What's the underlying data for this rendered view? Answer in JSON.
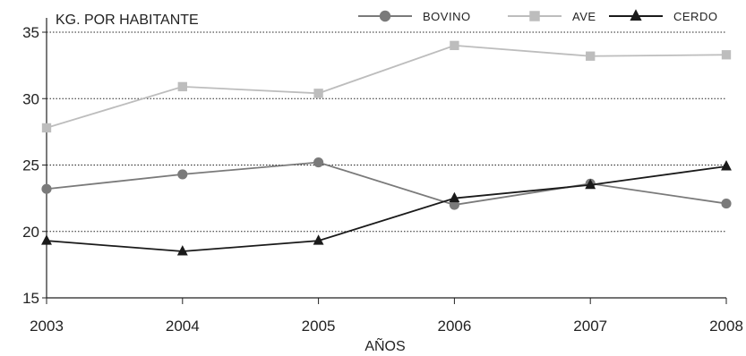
{
  "chart_data": {
    "type": "line",
    "ylabel": "KG. POR HABITANTE",
    "xlabel": "AÑOS",
    "x": [
      "2003",
      "2004",
      "2005",
      "2006",
      "2007",
      "2008"
    ],
    "ylim": [
      15,
      35
    ],
    "yticks": [
      15,
      20,
      25,
      30,
      35
    ],
    "grid": true,
    "legend": "top-right",
    "series": [
      {
        "name": "BOVINO",
        "color": "#7a7a7a",
        "marker": "circle",
        "values": [
          23.2,
          24.3,
          25.2,
          22.0,
          23.6,
          22.1
        ]
      },
      {
        "name": "AVE",
        "color": "#bdbdbd",
        "marker": "square",
        "values": [
          27.8,
          30.9,
          30.4,
          34.0,
          33.2,
          33.3
        ]
      },
      {
        "name": "CERDO",
        "color": "#1a1a1a",
        "marker": "triangle",
        "values": [
          19.3,
          18.5,
          19.3,
          22.5,
          23.5,
          24.9
        ]
      }
    ]
  }
}
